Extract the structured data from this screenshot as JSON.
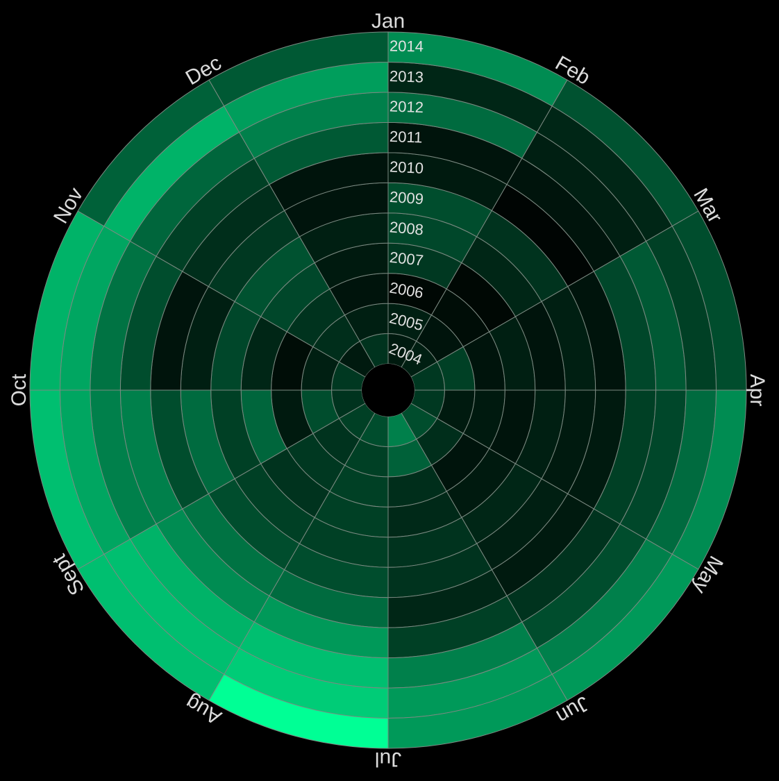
{
  "chart_data": {
    "type": "heatmap",
    "layout": "radial",
    "months": [
      "Jan",
      "Feb",
      "Mar",
      "Apr",
      "May",
      "Jun",
      "Jul",
      "Aug",
      "Sept",
      "Oct",
      "Nov",
      "Dec"
    ],
    "years": [
      "2004",
      "2005",
      "2006",
      "2007",
      "2008",
      "2009",
      "2010",
      "2011",
      "2012",
      "2013",
      "2014"
    ],
    "color_low": "#000000",
    "color_high": "#00ff95",
    "values": [
      [
        0.1,
        0.12,
        0.22,
        0.22,
        0.3,
        0.5,
        0.3,
        0.25,
        0.2,
        0.22,
        0.1,
        0.2
      ],
      [
        0.12,
        0.08,
        0.25,
        0.1,
        0.18,
        0.38,
        0.25,
        0.2,
        0.3,
        0.12,
        0.18,
        0.12
      ],
      [
        0.03,
        0.05,
        0.08,
        0.1,
        0.08,
        0.18,
        0.25,
        0.22,
        0.1,
        0.05,
        0.2,
        0.08
      ],
      [
        0.22,
        0.03,
        0.12,
        0.08,
        0.1,
        0.16,
        0.25,
        0.2,
        0.4,
        0.15,
        0.28,
        0.1
      ],
      [
        0.28,
        0.15,
        0.08,
        0.12,
        0.15,
        0.2,
        0.25,
        0.25,
        0.25,
        0.28,
        0.32,
        0.12
      ],
      [
        0.3,
        0.2,
        0.12,
        0.1,
        0.12,
        0.2,
        0.3,
        0.3,
        0.42,
        0.12,
        0.22,
        0.08
      ],
      [
        0.1,
        0.02,
        0.08,
        0.1,
        0.1,
        0.15,
        0.42,
        0.45,
        0.3,
        0.08,
        0.18,
        0.08
      ],
      [
        0.08,
        0.08,
        0.28,
        0.25,
        0.2,
        0.25,
        0.6,
        0.55,
        0.5,
        0.3,
        0.25,
        0.35
      ],
      [
        0.42,
        0.12,
        0.35,
        0.28,
        0.3,
        0.5,
        0.75,
        0.7,
        0.5,
        0.45,
        0.4,
        0.5
      ],
      [
        0.15,
        0.15,
        0.25,
        0.42,
        0.5,
        0.6,
        0.8,
        0.75,
        0.65,
        0.65,
        0.7,
        0.62
      ],
      [
        0.55,
        0.32,
        0.3,
        0.55,
        0.6,
        0.6,
        1.0,
        0.75,
        0.75,
        0.7,
        0.38,
        0.35
      ]
    ]
  }
}
